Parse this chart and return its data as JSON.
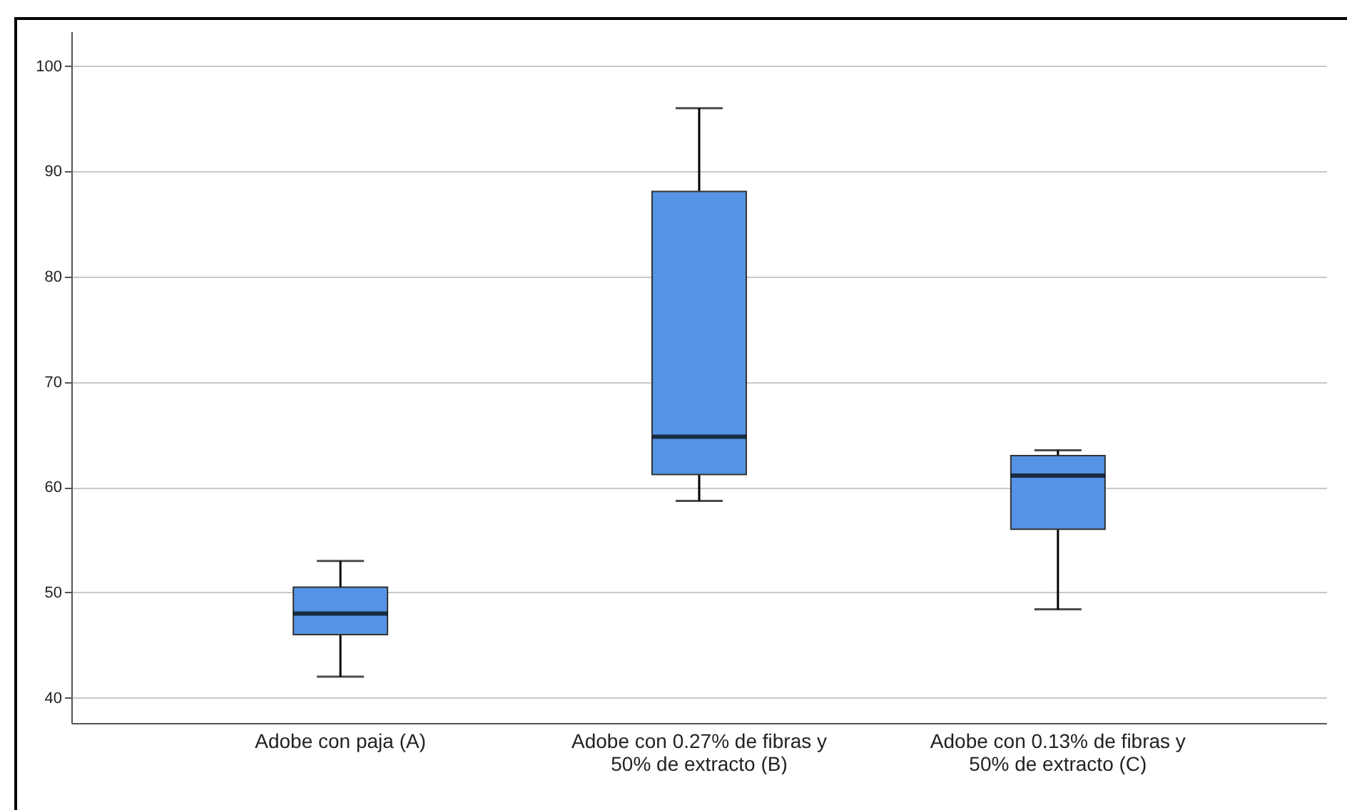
{
  "chart_data": {
    "type": "box",
    "categories": [
      "Adobe con paja (A)",
      "Adobe con 0.27% de fibras y 50% de extracto (B)",
      "Adobe con 0.13% de fibras y 50% de extracto (C)"
    ],
    "boxes": [
      {
        "low": 42,
        "q1": 46,
        "median": 48,
        "q3": 50.5,
        "high": 53
      },
      {
        "low": 58.7,
        "q1": 61.2,
        "median": 64.8,
        "q3": 88.1,
        "high": 96
      },
      {
        "low": 48.4,
        "q1": 56,
        "median": 61.1,
        "q3": 63,
        "high": 63.5
      }
    ],
    "color": "#5594e4",
    "ylim": [
      37.6,
      103.3
    ],
    "yticks": [
      40,
      50,
      60,
      70,
      80,
      90,
      100
    ],
    "grid": "y"
  }
}
